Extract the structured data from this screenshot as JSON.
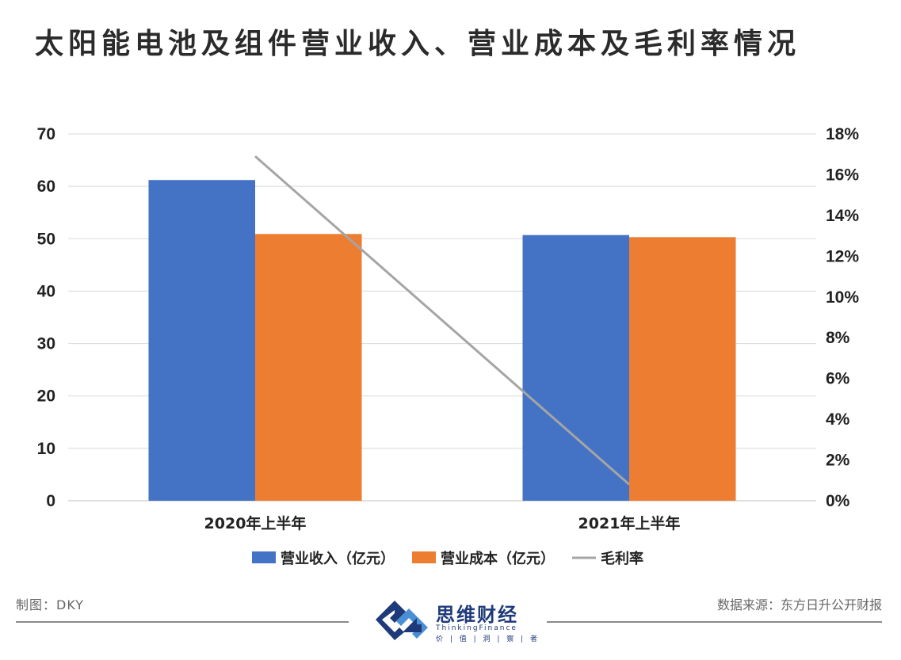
{
  "chart_data": {
    "type": "bar",
    "title": "太阳能电池及组件营业收入、营业成本及毛利率情况",
    "categories": [
      "2020年上半年",
      "2021年上半年"
    ],
    "series": [
      {
        "name": "营业收入（亿元）",
        "type": "bar",
        "axis": "left",
        "color": "#4472C4",
        "values": [
          61.2,
          50.7
        ]
      },
      {
        "name": "营业成本（亿元）",
        "type": "bar",
        "axis": "left",
        "color": "#ED7D31",
        "values": [
          50.9,
          50.3
        ]
      },
      {
        "name": "毛利率",
        "type": "line",
        "axis": "right",
        "color": "#A5A5A5",
        "values": [
          16.9,
          0.8
        ]
      }
    ],
    "y_left": {
      "min": 0,
      "max": 70,
      "step": 10,
      "ticks": [
        "0",
        "10",
        "20",
        "30",
        "40",
        "50",
        "60",
        "70"
      ]
    },
    "y_right": {
      "min": 0,
      "max": 18,
      "step": 2,
      "ticks": [
        "0%",
        "2%",
        "4%",
        "6%",
        "8%",
        "10%",
        "12%",
        "14%",
        "16%",
        "18%"
      ]
    },
    "grid": true,
    "legend_position": "bottom"
  },
  "footer": {
    "left": "制图：DKY",
    "right": "数据来源：东方日升公开财报"
  },
  "logo": {
    "name": "思维财经",
    "english": "ThinkingFinance",
    "motto": "价 | 值 | 洞 | 察 | 者"
  }
}
